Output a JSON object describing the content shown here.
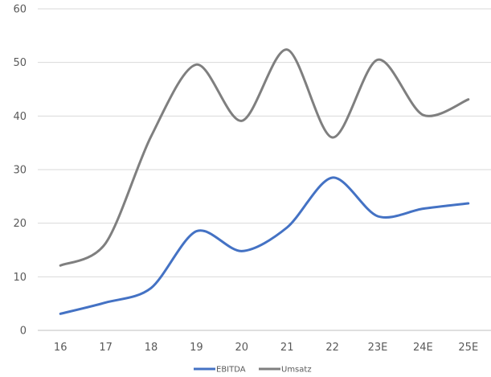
{
  "chart_data": {
    "type": "line",
    "smooth": true,
    "categories": [
      "16",
      "17",
      "18",
      "19",
      "20",
      "21",
      "22",
      "23E",
      "24E",
      "25E"
    ],
    "ylim": [
      0,
      60
    ],
    "yticks": [
      "0",
      "10",
      "20",
      "30",
      "40",
      "50",
      "60"
    ],
    "grid": "horizontal",
    "legend_position": "bottom",
    "series": [
      {
        "name": "EBITDA",
        "color": "#4472C4",
        "values": [
          3.1,
          5.2,
          7.9,
          18.5,
          14.8,
          19.2,
          28.5,
          21.3,
          22.7,
          23.7
        ]
      },
      {
        "name": "Umsatz",
        "color": "#7F7F7F",
        "values": [
          12.1,
          16.3,
          36.2,
          49.6,
          39.1,
          52.4,
          36.0,
          50.5,
          40.2,
          43.1
        ]
      }
    ]
  }
}
